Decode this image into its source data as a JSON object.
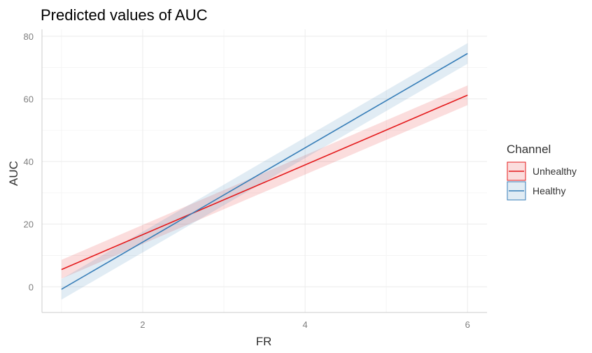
{
  "chart_data": {
    "type": "line",
    "title": "Predicted values of AUC",
    "xlabel": "FR",
    "ylabel": "AUC",
    "xlim": [
      0.76,
      6.24
    ],
    "ylim": [
      -8.2,
      82.2
    ],
    "x_ticks": [
      2,
      4,
      6
    ],
    "y_ticks": [
      0,
      20,
      40,
      60,
      80
    ],
    "x_minor_ticks": [
      1,
      3,
      5
    ],
    "y_minor_ticks": [
      10,
      30,
      50,
      70
    ],
    "grid": true,
    "legend": {
      "title": "Channel",
      "position": "right"
    },
    "series": [
      {
        "name": "Unhealthy",
        "color": "#e41a1c",
        "x": [
          1,
          6
        ],
        "y": [
          5.5,
          61.2
        ],
        "ci_low": [
          2.6,
          58.0
        ],
        "ci_high": [
          8.6,
          64.3
        ]
      },
      {
        "name": "Healthy",
        "color": "#377eb8",
        "x": [
          1,
          6
        ],
        "y": [
          -0.8,
          74.5
        ],
        "ci_low": [
          -4.1,
          71.2
        ],
        "ci_high": [
          2.5,
          77.8
        ]
      }
    ]
  }
}
